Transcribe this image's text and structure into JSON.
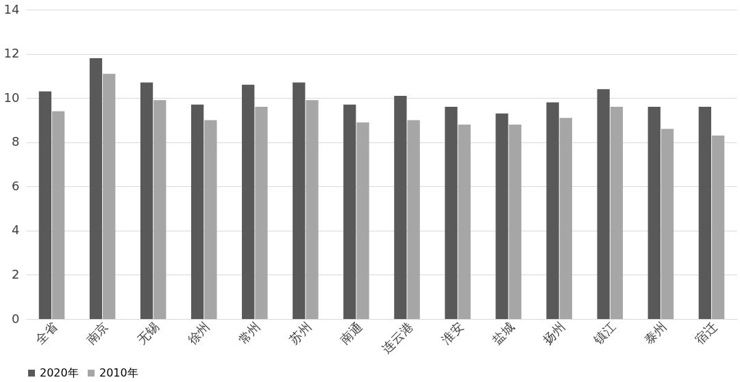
{
  "chart_data": {
    "type": "bar",
    "categories": [
      "全省",
      "南京",
      "无锡",
      "徐州",
      "常州",
      "苏州",
      "南通",
      "连云港",
      "淮安",
      "盐城",
      "扬州",
      "镇江",
      "泰州",
      "宿迁"
    ],
    "series": [
      {
        "name": "2020年",
        "color": "#595959",
        "values": [
          10.3,
          11.8,
          10.7,
          9.7,
          10.6,
          10.7,
          9.7,
          10.1,
          9.6,
          9.3,
          9.8,
          10.4,
          9.6,
          9.6
        ]
      },
      {
        "name": "2010年",
        "color": "#a6a6a6",
        "values": [
          9.4,
          11.1,
          9.9,
          9.0,
          9.6,
          9.9,
          8.9,
          9.0,
          8.8,
          8.8,
          9.1,
          9.6,
          8.6,
          8.3
        ]
      }
    ],
    "ylim": [
      0,
      14
    ],
    "yticks": [
      0,
      2,
      4,
      6,
      8,
      10,
      12,
      14
    ],
    "grid": "y",
    "legend": "bottom"
  }
}
